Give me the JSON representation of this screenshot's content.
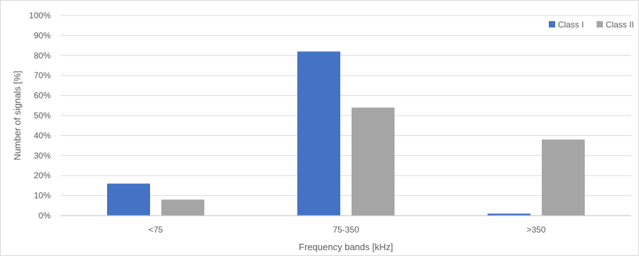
{
  "chart_data": {
    "type": "bar",
    "title": "",
    "xlabel": "Frequency bands [kHz]",
    "ylabel": "Number of signals [%]",
    "categories": [
      "<75",
      "75-350",
      ">350"
    ],
    "series": [
      {
        "name": "Class I",
        "color": "#4472c4",
        "values": [
          16,
          82,
          1
        ]
      },
      {
        "name": "Class II",
        "color": "#a5a5a5",
        "values": [
          8,
          54,
          38
        ]
      }
    ],
    "ylim": [
      0,
      100
    ],
    "yticks": [
      "0%",
      "10%",
      "20%",
      "30%",
      "40%",
      "50%",
      "60%",
      "70%",
      "80%",
      "90%",
      "100%"
    ],
    "grid": true,
    "legend_position": "top-right"
  }
}
